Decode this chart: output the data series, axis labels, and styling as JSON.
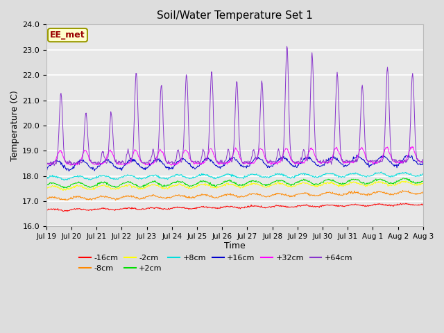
{
  "title": "Soil/Water Temperature Set 1",
  "xlabel": "Time",
  "ylabel": "Temperature (C)",
  "ylim": [
    16.0,
    24.0
  ],
  "yticks": [
    16.0,
    17.0,
    18.0,
    19.0,
    20.0,
    21.0,
    22.0,
    23.0,
    24.0
  ],
  "bg_color": "#dddddd",
  "plot_bg": "#e8e8e8",
  "annotation_text": "EE_met",
  "annotation_bg": "#ffffcc",
  "annotation_border": "#999900",
  "series": [
    {
      "label": "-16cm",
      "color": "#ff0000"
    },
    {
      "label": "-8cm",
      "color": "#ff8800"
    },
    {
      "label": "-2cm",
      "color": "#ffff00"
    },
    {
      "label": "+2cm",
      "color": "#00dd00"
    },
    {
      "label": "+8cm",
      "color": "#00dddd"
    },
    {
      "label": "+16cm",
      "color": "#0000cc"
    },
    {
      "label": "+32cm",
      "color": "#ff00ff"
    },
    {
      "label": "+64cm",
      "color": "#8833cc"
    }
  ],
  "xtick_labels": [
    "Jul 19",
    "Jul 20",
    "Jul 21",
    "Jul 22",
    "Jul 23",
    "Jul 24",
    "Jul 25",
    "Jul 26",
    "Jul 27",
    "Jul 28",
    "Jul 29",
    "Jul 30",
    "Jul 31",
    "Aug 1",
    "Aug 2",
    "Aug 3"
  ],
  "line_width": 0.7,
  "n_days": 15,
  "n_per_day": 48
}
